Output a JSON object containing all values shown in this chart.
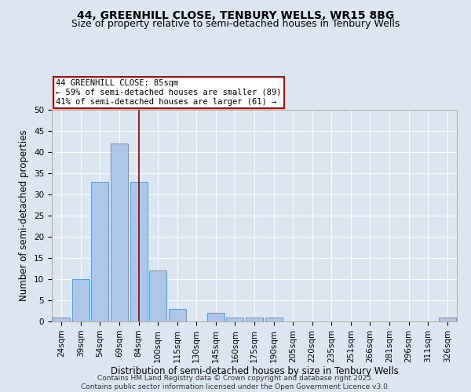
{
  "title": "44, GREENHILL CLOSE, TENBURY WELLS, WR15 8BG",
  "subtitle": "Size of property relative to semi-detached houses in Tenbury Wells",
  "xlabel": "Distribution of semi-detached houses by size in Tenbury Wells",
  "ylabel": "Number of semi-detached properties",
  "categories": [
    "24sqm",
    "39sqm",
    "54sqm",
    "69sqm",
    "84sqm",
    "100sqm",
    "115sqm",
    "130sqm",
    "145sqm",
    "160sqm",
    "175sqm",
    "190sqm",
    "205sqm",
    "220sqm",
    "235sqm",
    "251sqm",
    "266sqm",
    "281sqm",
    "296sqm",
    "311sqm",
    "326sqm"
  ],
  "values": [
    1,
    10,
    33,
    42,
    33,
    12,
    3,
    0,
    2,
    1,
    1,
    1,
    0,
    0,
    0,
    0,
    0,
    0,
    0,
    0,
    1
  ],
  "bar_color": "#aec6e8",
  "bar_edge_color": "#5b9bd5",
  "background_color": "#dce6f1",
  "grid_color": "#ffffff",
  "vline_x": 4,
  "vline_color": "#8b0000",
  "annotation_text": "44 GREENHILL CLOSE: 85sqm\n← 59% of semi-detached houses are smaller (89)\n41% of semi-detached houses are larger (61) →",
  "annotation_box_color": "#ffffff",
  "annotation_box_edge": "#cc0000",
  "ylim": [
    0,
    50
  ],
  "yticks": [
    0,
    5,
    10,
    15,
    20,
    25,
    30,
    35,
    40,
    45,
    50
  ],
  "footer": "Contains HM Land Registry data © Crown copyright and database right 2025.\nContains public sector information licensed under the Open Government Licence v3.0.",
  "title_fontsize": 10,
  "subtitle_fontsize": 9,
  "axis_fontsize": 8.5,
  "tick_fontsize": 7.5,
  "footer_fontsize": 6.5
}
